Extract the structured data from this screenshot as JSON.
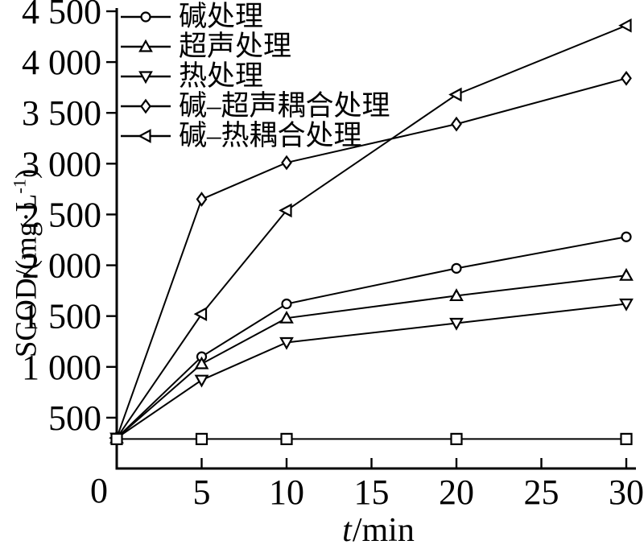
{
  "colors": {
    "ink": "#000000",
    "background": "#ffffff",
    "marker_fill": "#ffffff"
  },
  "axes": {
    "y": {
      "title_prefix": "SCOD/(mg·L",
      "title_sup": "-1",
      "title_suffix": ")",
      "tick_values": [
        4500,
        4000,
        3500,
        3000,
        2500,
        2000,
        1500,
        1000,
        500
      ],
      "tick_labels": [
        "4 500",
        "4 000",
        "3 500",
        "3 000",
        "2 500",
        "2 000",
        "1 500",
        "1 000",
        "500"
      ]
    },
    "x": {
      "title_italic": "t",
      "title_rest": "/min",
      "tick_values": [
        5,
        10,
        15,
        20,
        25,
        30
      ],
      "tick_labels": [
        "5",
        "10",
        "15",
        "20",
        "25",
        "30"
      ]
    },
    "origin_label": "0"
  },
  "chart_data": {
    "type": "line",
    "title": "",
    "xlabel": "t/min",
    "ylabel": "SCOD/(mg·L⁻¹)",
    "xlim": [
      0,
      30
    ],
    "ylim": [
      0,
      4500
    ],
    "grid": false,
    "legend_position": "top-left",
    "x": [
      0,
      5,
      10,
      20,
      30
    ],
    "series": [
      {
        "name": "碱处理",
        "marker": "circle",
        "values": [
          300,
          1100,
          1620,
          1970,
          2280
        ],
        "in_legend": true
      },
      {
        "name": "超声处理",
        "marker": "triangle-up",
        "values": [
          300,
          1030,
          1480,
          1700,
          1900
        ],
        "in_legend": true
      },
      {
        "name": "热处理",
        "marker": "triangle-down",
        "values": [
          300,
          870,
          1240,
          1430,
          1620
        ],
        "in_legend": true
      },
      {
        "name": "碱–超声耦合处理",
        "marker": "diamond",
        "values": [
          300,
          2650,
          3010,
          3390,
          3840
        ],
        "in_legend": true
      },
      {
        "name": "碱–热耦合处理",
        "marker": "triangle-left",
        "values": [
          300,
          1520,
          2540,
          3680,
          4360
        ],
        "in_legend": true
      },
      {
        "name": "",
        "marker": "square",
        "values": [
          290,
          290,
          290,
          290,
          290
        ],
        "in_legend": false
      }
    ]
  }
}
